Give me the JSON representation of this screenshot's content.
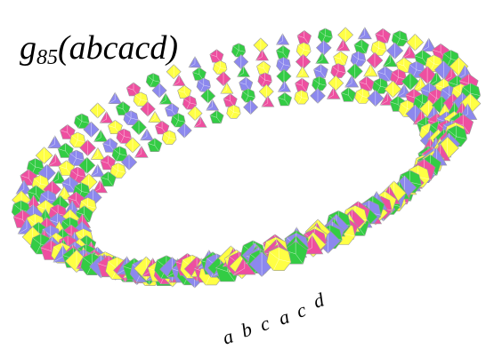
{
  "title": {
    "base": "g",
    "subscript": "85",
    "argument": "(abcacd)"
  },
  "labels": [
    "a",
    "b",
    "c",
    "a",
    "c",
    "d"
  ]
}
